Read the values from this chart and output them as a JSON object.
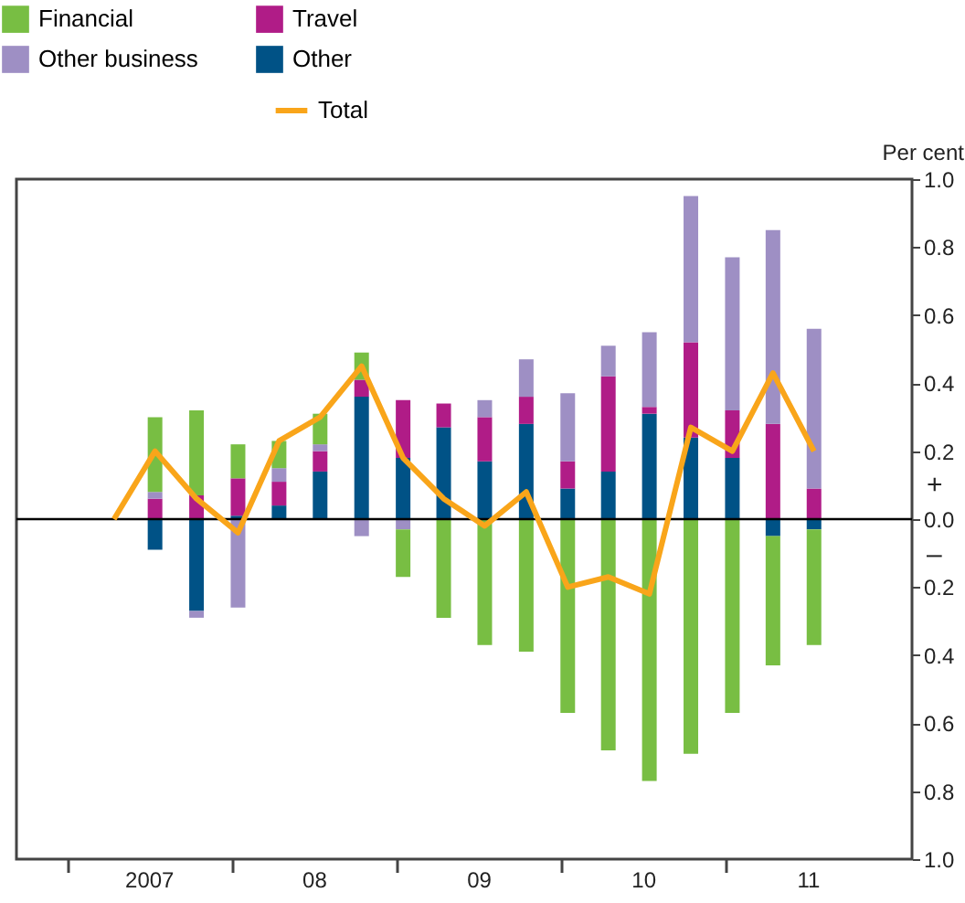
{
  "chart_data": {
    "type": "bar",
    "stacked": true,
    "ylabel": "Per cent",
    "x": [
      "2007-04-15",
      "2007-07-15",
      "2007-10-15",
      "2008-01-15",
      "2008-04-15",
      "2008-07-15",
      "2008-10-15",
      "2009-01-15",
      "2009-04-15",
      "2009-07-15",
      "2009-10-15",
      "2010-01-15",
      "2010-04-15",
      "2010-07-15",
      "2010-10-15",
      "2011-01-15",
      "2011-04-15",
      "2011-07-15"
    ],
    "series": [
      {
        "name": "Other",
        "color": "#005286",
        "values": [
          null,
          -0.09,
          -0.27,
          0.01,
          0.04,
          0.14,
          0.36,
          0.18,
          0.27,
          0.17,
          0.28,
          0.09,
          0.14,
          0.31,
          0.24,
          0.18,
          -0.05,
          -0.03
        ]
      },
      {
        "name": "Travel",
        "color": "#b01c87",
        "values": [
          null,
          0.06,
          0.07,
          0.11,
          0.07,
          0.06,
          0.05,
          0.17,
          0.07,
          0.13,
          0.08,
          0.08,
          0.28,
          0.02,
          0.28,
          0.14,
          0.28,
          0.09
        ]
      },
      {
        "name": "Other business",
        "color": "#9e8fc4",
        "values": [
          null,
          0.02,
          -0.02,
          -0.26,
          0.04,
          0.02,
          -0.05,
          -0.03,
          null,
          0.05,
          0.11,
          0.2,
          0.09,
          0.22,
          0.43,
          0.45,
          0.57,
          0.47
        ]
      },
      {
        "name": "Financial",
        "color": "#78be43",
        "values": [
          null,
          0.22,
          0.25,
          0.1,
          0.08,
          0.09,
          0.08,
          -0.14,
          -0.29,
          -0.37,
          -0.39,
          -0.57,
          -0.68,
          -0.77,
          -0.69,
          -0.57,
          -0.38,
          -0.34
        ]
      },
      {
        "name": "Total",
        "type": "line",
        "color": "#f9a51a",
        "values": [
          0,
          0.2,
          0.06,
          -0.04,
          0.23,
          0.3,
          0.45,
          0.18,
          0.06,
          -0.02,
          0.08,
          -0.2,
          -0.17,
          -0.22,
          0.27,
          0.2,
          0.43,
          0.2
        ]
      }
    ],
    "xlim": [
      "2006-10-01",
      "2012-01-28"
    ],
    "xticks": [
      {
        "value": "2007-01-01",
        "label": null
      },
      {
        "value": "2008-01-01",
        "label": null
      },
      {
        "value": "2009-01-01",
        "label": null
      },
      {
        "value": "2010-01-01",
        "label": null
      },
      {
        "value": "2011-01-01",
        "label": null
      },
      {
        "value": "2007-07-01",
        "label": "2007"
      },
      {
        "value": "2008-07-01",
        "label": "08"
      },
      {
        "value": "2009-07-01",
        "label": "09"
      },
      {
        "value": "2010-07-01",
        "label": "10"
      },
      {
        "value": "2011-07-01",
        "label": "11"
      }
    ],
    "ylim": [
      -1.0,
      1.0
    ],
    "yticks": [
      {
        "value": -1.0,
        "label": "1.0"
      },
      {
        "value": -0.8,
        "label": "0.8"
      },
      {
        "value": -0.6,
        "label": "0.6"
      },
      {
        "value": -0.4,
        "label": "0.4"
      },
      {
        "value": -0.2,
        "label": "0.2"
      },
      {
        "value": 0,
        "label": "0.0"
      },
      {
        "value": 0.2,
        "label": "0.2"
      },
      {
        "value": 0.4,
        "label": "0.4"
      },
      {
        "value": 0.6,
        "label": "0.6"
      },
      {
        "value": 0.8,
        "label": "0.8"
      },
      {
        "value": 1.0,
        "label": "1.0"
      }
    ],
    "ref_lines": [
      {
        "axis": "y",
        "value": 0,
        "color": "#000000"
      }
    ],
    "annotations": [
      "+",
      "–"
    ],
    "grid": false,
    "legend": "top left"
  }
}
